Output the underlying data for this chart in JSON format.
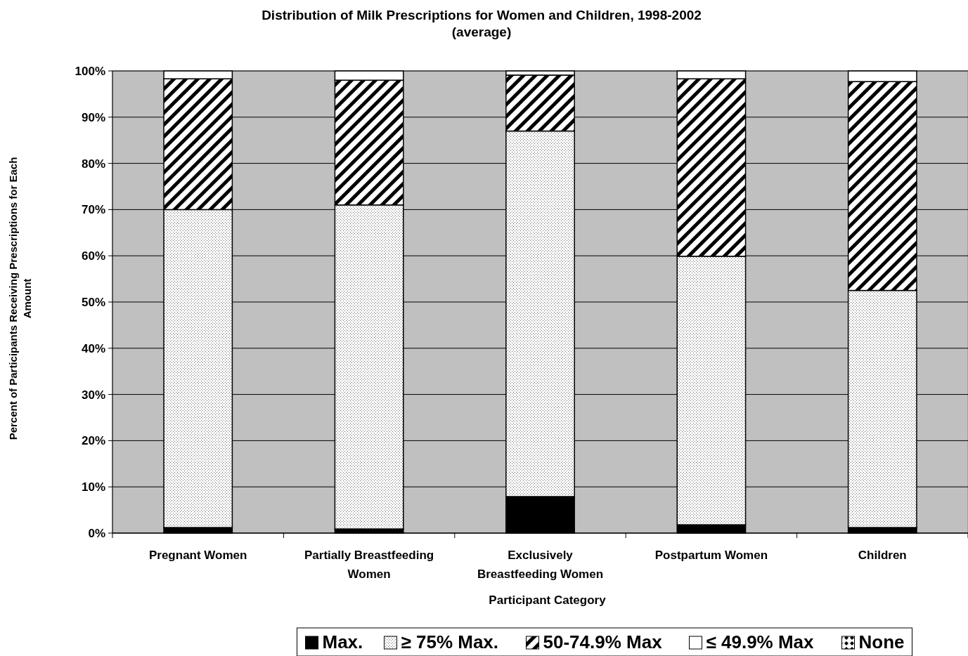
{
  "chart_data": {
    "type": "bar",
    "stacked": true,
    "title": "Distribution of Milk Prescriptions for Women and Children, 1998-2002 (average)",
    "xlabel": "Participant Category",
    "ylabel": "Percent of Participants Receiving Prescriptions for Each Amount",
    "categories": [
      "Pregnant Women",
      "Partially Breastfeeding Women",
      "Exclusively Breastfeeding Women",
      "Postpartum Women",
      "Children"
    ],
    "series": [
      {
        "name": "Max.",
        "color": "#000000",
        "values": [
          1.2,
          0.9,
          7.9,
          1.8,
          1.2
        ]
      },
      {
        "name": "≥ 75% Max.",
        "color": "#000000",
        "values": [
          68.8,
          70.1,
          79.1,
          58.1,
          51.3
        ]
      },
      {
        "name": "50-74.9% Max",
        "color": "#000000",
        "values": [
          28.3,
          27.0,
          12.1,
          38.4,
          45.2
        ]
      },
      {
        "name": "≤ 49.9% Max",
        "color": "#ffffff",
        "values": [
          1.7,
          2.0,
          0.9,
          1.7,
          2.3
        ]
      },
      {
        "name": "None",
        "color": "#000000",
        "values": [
          0,
          0,
          0,
          0,
          0
        ]
      }
    ],
    "ylim": [
      0,
      100
    ],
    "yticks": [
      {
        "value": 0,
        "label": "0%"
      },
      {
        "value": 10,
        "label": "10%"
      },
      {
        "value": 20,
        "label": "20%"
      },
      {
        "value": 30,
        "label": "30%"
      },
      {
        "value": 40,
        "label": "40%"
      },
      {
        "value": 50,
        "label": "50%"
      },
      {
        "value": 60,
        "label": "60%"
      },
      {
        "value": 70,
        "label": "70%"
      },
      {
        "value": 80,
        "label": "80%"
      },
      {
        "value": 90,
        "label": "90%"
      },
      {
        "value": 100,
        "label": "100%"
      }
    ],
    "grid": "y",
    "legend": "bottom"
  }
}
